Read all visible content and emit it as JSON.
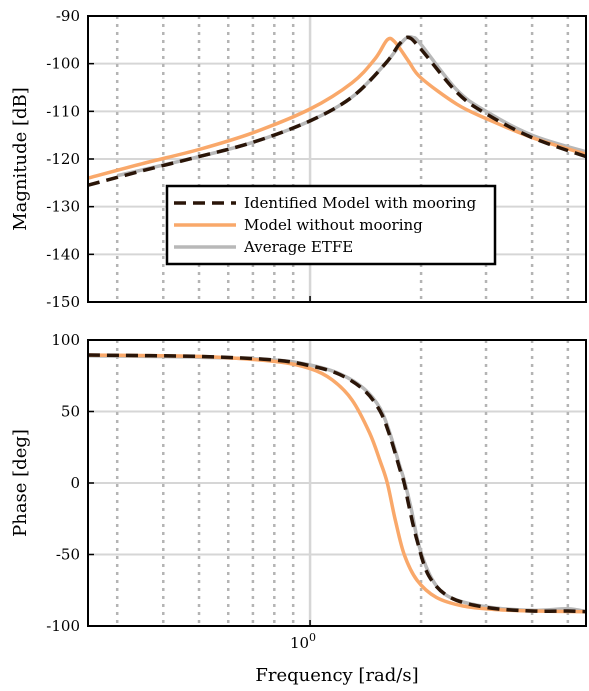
{
  "chart_data": [
    {
      "type": "line",
      "panel": "magnitude",
      "ylabel": "Magnitude [dB]",
      "xscale": "log",
      "xlim": [
        0.25,
        5.6
      ],
      "ylim": [
        -150,
        -90
      ],
      "yticks": [
        -90,
        -100,
        -110,
        -120,
        -130,
        -140,
        -150
      ],
      "grid": true,
      "legend_position": "center-left",
      "series": [
        {
          "name": "Identified Model with mooring",
          "style": "dashed",
          "color": "#2a1508",
          "x": [
            0.25,
            0.35,
            0.5,
            0.7,
            1.0,
            1.3,
            1.6,
            1.75,
            1.85,
            2.0,
            2.5,
            3.0,
            4.0,
            5.6
          ],
          "y": [
            -125.5,
            -122.5,
            -119.5,
            -116.5,
            -112.0,
            -107.0,
            -100.0,
            -95.8,
            -94.5,
            -97.0,
            -106.0,
            -110.5,
            -115.5,
            -119.5
          ]
        },
        {
          "name": "Model without mooring",
          "style": "solid",
          "color": "#f9a86a",
          "x": [
            0.25,
            0.35,
            0.5,
            0.7,
            1.0,
            1.3,
            1.5,
            1.62,
            1.7,
            1.85,
            2.0,
            2.5,
            3.0,
            4.0,
            5.6
          ],
          "y": [
            -124.0,
            -121.0,
            -118.0,
            -114.5,
            -109.5,
            -104.0,
            -99.0,
            -95.0,
            -95.5,
            -99.5,
            -103.0,
            -108.5,
            -111.5,
            -115.5,
            -119.0
          ]
        },
        {
          "name": "Average ETFE",
          "style": "solid",
          "color": "#b8b8b8",
          "x": [
            0.3,
            0.5,
            0.7,
            1.0,
            1.3,
            1.6,
            1.8,
            1.9,
            2.0,
            2.5,
            3.0,
            4.0,
            5.6
          ],
          "y": [
            -123.5,
            -119.5,
            -116.5,
            -112.0,
            -107.0,
            -100.0,
            -95.0,
            -94.5,
            -96.0,
            -105.5,
            -110.0,
            -115.0,
            -118.5
          ]
        }
      ]
    },
    {
      "type": "line",
      "panel": "phase",
      "xlabel": "Frequency [rad/s]",
      "ylabel": "Phase [deg]",
      "xscale": "log",
      "xlim": [
        0.25,
        5.6
      ],
      "ylim": [
        -100,
        100
      ],
      "yticks": [
        100,
        50,
        0,
        -50,
        -100
      ],
      "xtick_label": "10^0",
      "grid": true,
      "series": [
        {
          "name": "Identified Model with mooring",
          "style": "dashed",
          "color": "#2a1508",
          "x": [
            0.25,
            0.5,
            0.8,
            1.0,
            1.2,
            1.4,
            1.55,
            1.65,
            1.75,
            1.8,
            1.85,
            1.95,
            2.1,
            2.4,
            3.0,
            4.0,
            5.0,
            5.6
          ],
          "y": [
            89.5,
            88.5,
            86.0,
            82.0,
            76.0,
            65.0,
            50.0,
            32.0,
            10.0,
            0.0,
            -15.0,
            -40.0,
            -65.0,
            -80.0,
            -87.0,
            -89.5,
            -89.5,
            -90.0
          ]
        },
        {
          "name": "Model without mooring",
          "style": "solid",
          "color": "#f9a86a",
          "x": [
            0.25,
            0.5,
            0.8,
            1.0,
            1.15,
            1.3,
            1.45,
            1.55,
            1.62,
            1.7,
            1.8,
            1.95,
            2.2,
            2.6,
            3.2,
            4.0,
            5.6
          ],
          "y": [
            89.5,
            88.5,
            85.0,
            80.0,
            72.0,
            58.0,
            35.0,
            15.0,
            0.0,
            -25.0,
            -50.0,
            -68.0,
            -80.0,
            -86.0,
            -88.5,
            -89.5,
            -90.0
          ]
        },
        {
          "name": "Average ETFE",
          "style": "solid",
          "color": "#b8b8b8",
          "x": [
            0.25,
            0.5,
            0.8,
            1.0,
            1.2,
            1.4,
            1.55,
            1.65,
            1.75,
            1.8,
            1.88,
            1.98,
            2.15,
            2.4,
            3.0,
            4.0,
            5.0,
            5.6
          ],
          "y": [
            89.0,
            88.0,
            86.0,
            82.5,
            76.5,
            66.0,
            52.0,
            34.0,
            12.0,
            2.0,
            -18.0,
            -45.0,
            -68.0,
            -80.0,
            -86.5,
            -89.0,
            -88.0,
            -90.0
          ]
        }
      ]
    }
  ]
}
